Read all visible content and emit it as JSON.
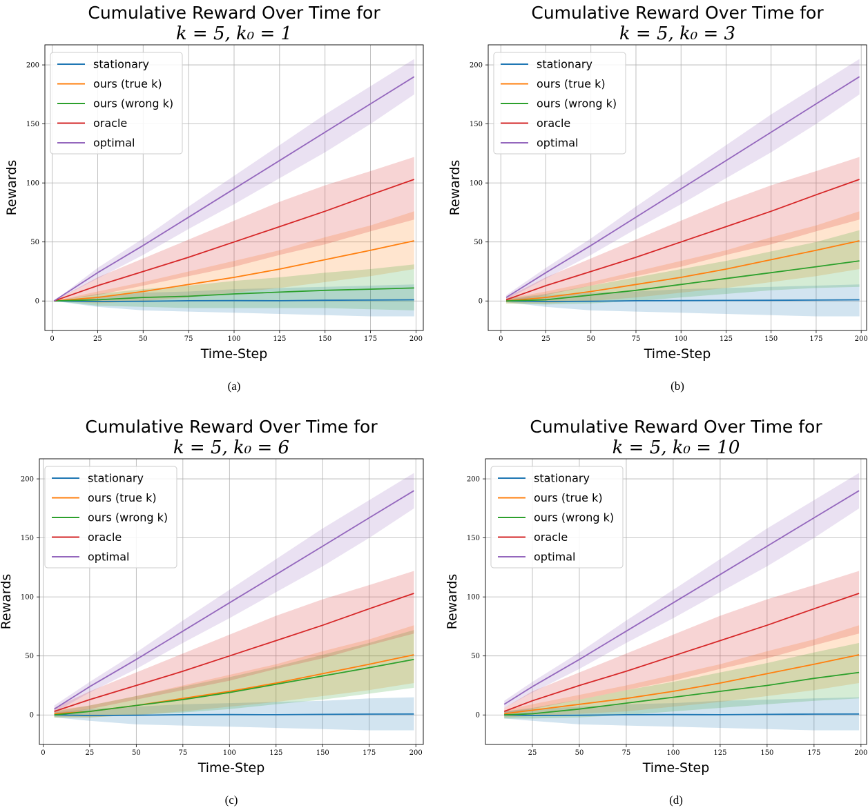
{
  "chart_data": [
    {
      "type": "line",
      "panel_caption": "(a)",
      "title_line1": "Cumulative Reward Over Time for",
      "title_line2": "k = 5, k₀ = 1",
      "xlabel": "Time-Step",
      "ylabel": "Rewards",
      "xlim": [
        -4,
        204
      ],
      "ylim": [
        -25,
        217
      ],
      "xticks": [
        0,
        25,
        50,
        75,
        100,
        125,
        150,
        175,
        200
      ],
      "yticks": [
        0,
        50,
        100,
        150,
        200
      ],
      "grid": true,
      "legend_position": "upper-left",
      "x": [
        1,
        25,
        50,
        75,
        100,
        125,
        150,
        175,
        199
      ],
      "series": [
        {
          "name": "stationary",
          "color": "#1f77b4",
          "values": [
            0,
            -0.5,
            -0.3,
            0.2,
            0.3,
            0.2,
            0.6,
            0.8,
            1
          ],
          "lower": [
            0,
            -5,
            -8,
            -9,
            -10,
            -11,
            -12,
            -13,
            -13
          ],
          "upper": [
            0,
            4,
            7,
            8,
            10,
            11,
            12,
            13,
            14
          ]
        },
        {
          "name": "ours (true k)",
          "color": "#ff7f0e",
          "values": [
            0,
            3,
            8,
            14,
            20,
            27,
            35,
            43,
            51
          ],
          "lower": [
            0,
            -2,
            0,
            3,
            7,
            11,
            16,
            21,
            27
          ],
          "upper": [
            0,
            8,
            16,
            25,
            34,
            43,
            54,
            64,
            76
          ]
        },
        {
          "name": "ours (wrong k)",
          "color": "#2ca02c",
          "values": [
            0,
            1,
            3,
            4,
            6,
            7.5,
            9,
            10,
            11
          ],
          "lower": [
            0,
            -4,
            -5,
            -6,
            -6,
            -6,
            -6,
            -7,
            -8
          ],
          "upper": [
            0,
            6,
            10,
            13,
            17,
            20,
            24,
            27,
            31
          ]
        },
        {
          "name": "oracle",
          "color": "#d62728",
          "values": [
            0,
            13,
            25,
            37,
            50,
            63,
            76,
            90,
            103
          ],
          "lower": [
            0,
            5,
            13,
            21,
            29,
            39,
            48,
            59,
            69
          ],
          "upper": [
            0,
            20,
            36,
            52,
            68,
            84,
            98,
            110,
            122
          ]
        },
        {
          "name": "optimal",
          "color": "#9467bd",
          "values": [
            0,
            24,
            47,
            71,
            95,
            119,
            143,
            167,
            190
          ],
          "lower": [
            0,
            19,
            39,
            61,
            82,
            104,
            126,
            150,
            175
          ],
          "upper": [
            0,
            28,
            53,
            80,
            106,
            132,
            158,
            182,
            205
          ]
        }
      ]
    },
    {
      "type": "line",
      "panel_caption": "(b)",
      "title_line1": "Cumulative Reward Over Time for",
      "title_line2": "k = 5, k₀ = 3",
      "xlabel": "Time-Step",
      "ylabel": "Rewards",
      "xlim": [
        -7,
        203
      ],
      "ylim": [
        -25,
        217
      ],
      "xticks": [
        0,
        25,
        50,
        75,
        100,
        125,
        150,
        175,
        200
      ],
      "yticks": [
        0,
        50,
        100,
        150,
        200
      ],
      "grid": true,
      "legend_position": "upper-left",
      "x": [
        3,
        25,
        50,
        75,
        100,
        125,
        150,
        175,
        199
      ],
      "series": [
        {
          "name": "stationary",
          "color": "#1f77b4",
          "values": [
            0,
            -0.5,
            -0.3,
            0.2,
            0.3,
            0.5,
            0.6,
            0.8,
            1
          ],
          "lower": [
            -1,
            -5,
            -8,
            -9,
            -10,
            -11,
            -12,
            -13,
            -13
          ],
          "upper": [
            1,
            5,
            7,
            8,
            10,
            11,
            12,
            13,
            14
          ]
        },
        {
          "name": "ours (true k)",
          "color": "#ff7f0e",
          "values": [
            0,
            3,
            8,
            14,
            20,
            27,
            35,
            43,
            51
          ],
          "lower": [
            -2,
            -2,
            0,
            3,
            7,
            11,
            16,
            21,
            27
          ],
          "upper": [
            2,
            8,
            16,
            25,
            34,
            43,
            54,
            64,
            76
          ]
        },
        {
          "name": "ours (wrong k)",
          "color": "#2ca02c",
          "values": [
            0,
            1,
            5,
            9,
            14,
            19,
            24,
            29,
            34
          ],
          "lower": [
            -2,
            -3,
            -2,
            0,
            3,
            6,
            9,
            11,
            12
          ],
          "upper": [
            2,
            6,
            13,
            20,
            27,
            34,
            42,
            50,
            60
          ]
        },
        {
          "name": "oracle",
          "color": "#d62728",
          "values": [
            1,
            13,
            25,
            37,
            50,
            63,
            76,
            90,
            103
          ],
          "lower": [
            -1,
            5,
            13,
            21,
            29,
            39,
            48,
            59,
            69
          ],
          "upper": [
            3,
            20,
            36,
            52,
            68,
            84,
            98,
            110,
            122
          ]
        },
        {
          "name": "optimal",
          "color": "#9467bd",
          "values": [
            3,
            24,
            47,
            71,
            95,
            119,
            143,
            167,
            190
          ],
          "lower": [
            1,
            19,
            39,
            61,
            82,
            104,
            126,
            150,
            175
          ],
          "upper": [
            5,
            28,
            53,
            80,
            106,
            132,
            158,
            182,
            205
          ]
        }
      ]
    },
    {
      "type": "line",
      "panel_caption": "(c)",
      "title_line1": "Cumulative Reward Over Time for",
      "title_line2": "k = 5, k₀ = 6",
      "xlabel": "Time-Step",
      "ylabel": "Rewards",
      "xlim": [
        -2,
        204
      ],
      "ylim": [
        -25,
        217
      ],
      "xticks": [
        0,
        25,
        50,
        75,
        100,
        125,
        150,
        175,
        200
      ],
      "yticks": [
        0,
        50,
        100,
        150,
        200
      ],
      "grid": true,
      "legend_position": "upper-left",
      "x": [
        6,
        25,
        50,
        75,
        100,
        125,
        150,
        175,
        199
      ],
      "series": [
        {
          "name": "stationary",
          "color": "#1f77b4",
          "values": [
            0,
            -0.5,
            -0.3,
            0.2,
            0.3,
            0.2,
            0.5,
            0.7,
            0.8
          ],
          "lower": [
            -2,
            -5,
            -8,
            -9,
            -10,
            -11,
            -12,
            -13,
            -13
          ],
          "upper": [
            2,
            5,
            7,
            9,
            10,
            11,
            12,
            14,
            15
          ]
        },
        {
          "name": "ours (true k)",
          "color": "#ff7f0e",
          "values": [
            1,
            3,
            8,
            14,
            20,
            27,
            35,
            43,
            51
          ],
          "lower": [
            -2,
            -2,
            0,
            3,
            7,
            11,
            16,
            21,
            27
          ],
          "upper": [
            4,
            8,
            16,
            25,
            34,
            43,
            54,
            64,
            76
          ]
        },
        {
          "name": "ours (wrong k)",
          "color": "#2ca02c",
          "values": [
            0,
            3,
            8,
            13,
            19,
            26,
            33,
            40,
            47
          ],
          "lower": [
            -2,
            -2,
            0,
            2,
            5,
            9,
            13,
            18,
            23
          ],
          "upper": [
            3,
            8,
            16,
            24,
            32,
            41,
            51,
            61,
            72
          ]
        },
        {
          "name": "oracle",
          "color": "#d62728",
          "values": [
            3,
            13,
            25,
            37,
            50,
            63,
            76,
            90,
            103
          ],
          "lower": [
            0,
            5,
            13,
            21,
            29,
            39,
            48,
            59,
            69
          ],
          "upper": [
            6,
            20,
            36,
            52,
            68,
            84,
            98,
            110,
            122
          ]
        },
        {
          "name": "optimal",
          "color": "#9467bd",
          "values": [
            5,
            24,
            47,
            71,
            95,
            119,
            143,
            167,
            190
          ],
          "lower": [
            2,
            19,
            39,
            61,
            82,
            104,
            126,
            150,
            175
          ],
          "upper": [
            8,
            28,
            53,
            80,
            106,
            132,
            158,
            182,
            205
          ]
        }
      ]
    },
    {
      "type": "line",
      "panel_caption": "(d)",
      "title_line1": "Cumulative Reward Over Time for",
      "title_line2": "k = 5, k₀ = 10",
      "xlabel": "Time-Step",
      "ylabel": "Rewards",
      "xlim": [
        0,
        203
      ],
      "ylim": [
        -25,
        217
      ],
      "xticks": [
        25,
        50,
        75,
        100,
        125,
        150,
        175,
        200
      ],
      "yticks": [
        0,
        50,
        100,
        150,
        200
      ],
      "grid": true,
      "legend_position": "upper-left",
      "x": [
        10,
        25,
        50,
        75,
        100,
        125,
        150,
        175,
        199
      ],
      "series": [
        {
          "name": "stationary",
          "color": "#1f77b4",
          "values": [
            0,
            -0.5,
            -0.3,
            0.2,
            0.3,
            0.2,
            0.5,
            0.7,
            0.8
          ],
          "lower": [
            -3,
            -5,
            -8,
            -9,
            -10,
            -11,
            -12,
            -13,
            -13
          ],
          "upper": [
            3,
            5,
            7,
            9,
            10,
            12,
            13,
            14,
            15
          ]
        },
        {
          "name": "ours (true k)",
          "color": "#ff7f0e",
          "values": [
            1,
            4,
            9,
            14,
            20,
            27,
            35,
            43,
            51
          ],
          "lower": [
            -2,
            -1,
            1,
            3,
            7,
            11,
            16,
            21,
            27
          ],
          "upper": [
            4,
            9,
            17,
            25,
            34,
            43,
            54,
            64,
            76
          ]
        },
        {
          "name": "ours (wrong k)",
          "color": "#2ca02c",
          "values": [
            0,
            1,
            5,
            10,
            15,
            20,
            25,
            31,
            36
          ],
          "lower": [
            -3,
            -3,
            -2,
            0,
            3,
            6,
            9,
            12,
            14
          ],
          "upper": [
            3,
            6,
            13,
            21,
            28,
            36,
            44,
            53,
            61
          ]
        },
        {
          "name": "oracle",
          "color": "#d62728",
          "values": [
            3,
            12,
            25,
            37,
            50,
            63,
            76,
            90,
            103
          ],
          "lower": [
            0,
            5,
            13,
            21,
            29,
            39,
            48,
            59,
            69
          ],
          "upper": [
            6,
            20,
            36,
            52,
            68,
            84,
            98,
            110,
            122
          ]
        },
        {
          "name": "optimal",
          "color": "#9467bd",
          "values": [
            9,
            24,
            47,
            71,
            95,
            119,
            143,
            167,
            190
          ],
          "lower": [
            6,
            19,
            39,
            61,
            82,
            104,
            126,
            150,
            175
          ],
          "upper": [
            12,
            28,
            53,
            80,
            106,
            132,
            158,
            182,
            205
          ]
        }
      ]
    }
  ]
}
